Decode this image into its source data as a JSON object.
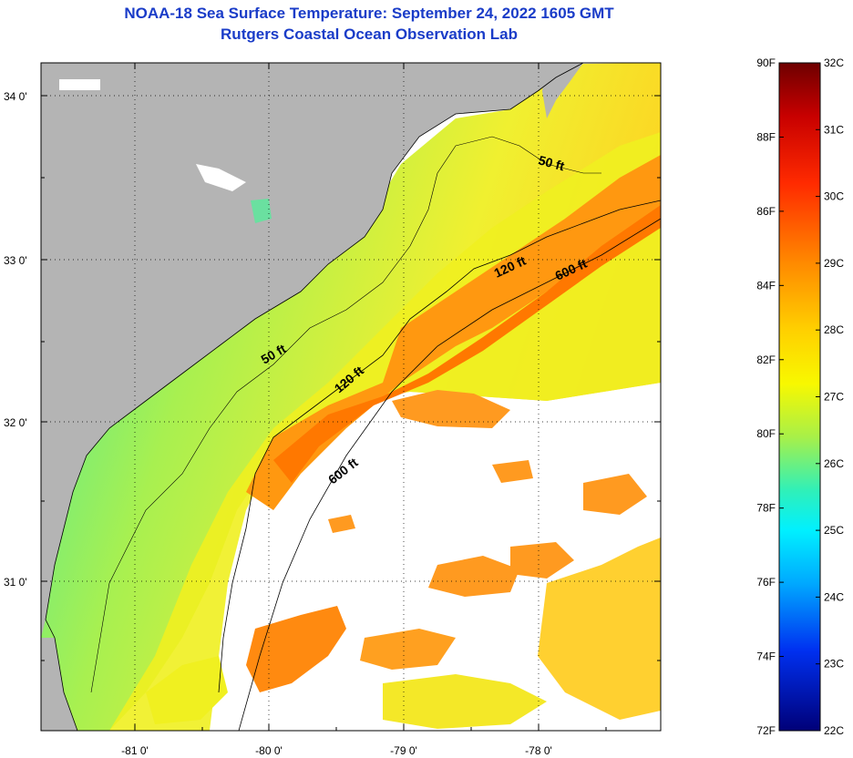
{
  "title": {
    "line1": "NOAA-18 Sea Surface Temperature:  September 24, 2022 1605 GMT",
    "line2": "Rutgers Coastal Ocean Observation Lab"
  },
  "map": {
    "lat_labels": [
      "34 0'",
      "33 0'",
      "32 0'",
      "31 0'"
    ],
    "lon_labels": [
      "-81 0'",
      "-80 0'",
      "-79 0'",
      "-78 0'"
    ],
    "contours": [
      "50 ft",
      "120 ft",
      "600 ft",
      "50 ft",
      "120 ft",
      "600 ft"
    ]
  },
  "colorbar": {
    "fahrenheit": [
      "90F",
      "88F",
      "86F",
      "84F",
      "82F",
      "80F",
      "78F",
      "76F",
      "74F",
      "72F"
    ],
    "celsius": [
      "32C",
      "31C",
      "30C",
      "29C",
      "28C",
      "27C",
      "26C",
      "25C",
      "24C",
      "23C",
      "22C"
    ],
    "colors": [
      "#7a0000",
      "#d40000",
      "#ff3c00",
      "#ff9400",
      "#ffe800",
      "#b8f040",
      "#40f0b0",
      "#00e8ff",
      "#0090ff",
      "#0020e0",
      "#000080"
    ]
  },
  "colors": {
    "land": "#b4b4b4",
    "nodata": "#ffffff",
    "title": "#1a3cc8"
  }
}
